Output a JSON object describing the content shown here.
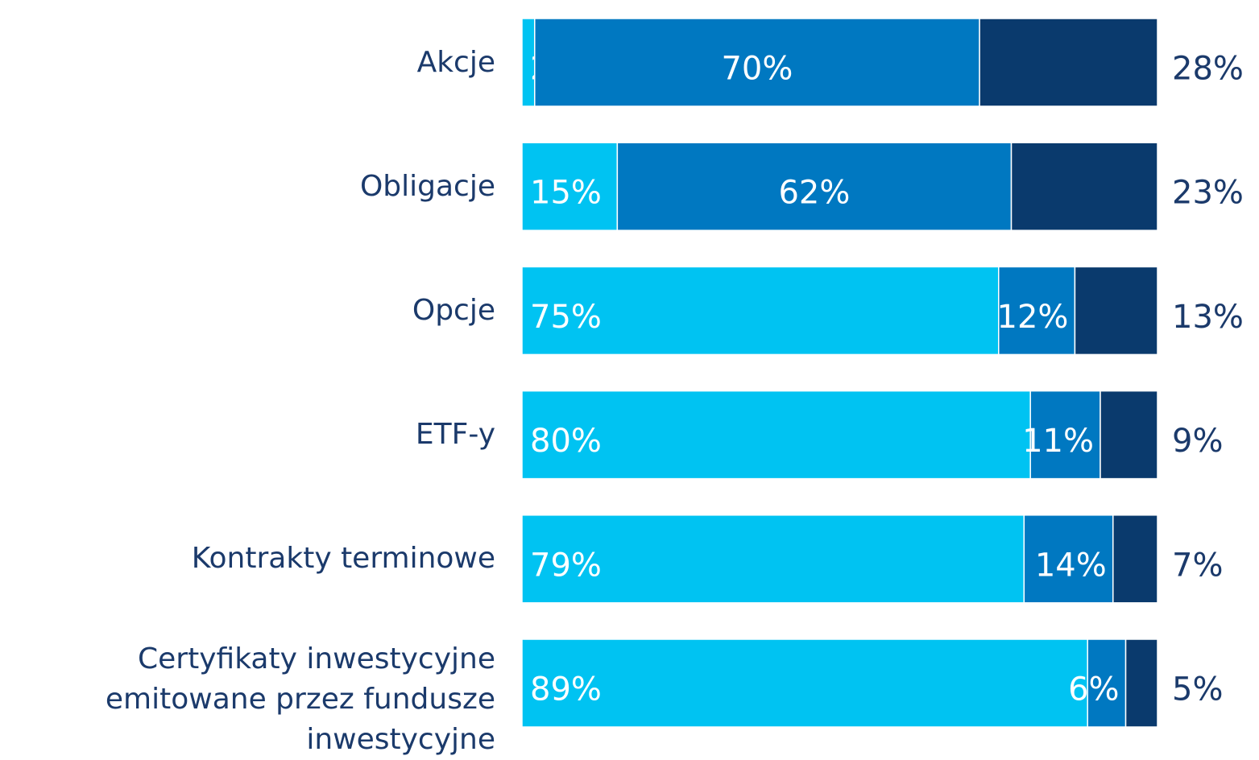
{
  "chart_data": {
    "type": "stacked-bar",
    "orientation": "horizontal",
    "categories": [
      "Akcje",
      "Obligacje",
      "Opcje",
      "ETF-y",
      "Kontrakty terminowe",
      "Certyfikaty inwestycyjne emitowane przez fundusze inwestycyjne"
    ],
    "xlim": [
      0,
      100
    ],
    "series": [
      {
        "color": "#00c3f2",
        "values": [
          2,
          15,
          75,
          80,
          79,
          89
        ],
        "value_labels": [
          "2%",
          "15%",
          "75%",
          "80%",
          "79%",
          "89%"
        ]
      },
      {
        "color": "#0078c1",
        "values": [
          70,
          62,
          12,
          11,
          14,
          6
        ],
        "value_labels": [
          "70%",
          "62%",
          "12%",
          "11%",
          "14%",
          "6%"
        ]
      },
      {
        "color": "#0a3a6d",
        "values": [
          28,
          23,
          13,
          9,
          7,
          5
        ],
        "value_labels": [
          "28%",
          "23%",
          "13%",
          "9%",
          "7%",
          "5%"
        ]
      }
    ]
  }
}
